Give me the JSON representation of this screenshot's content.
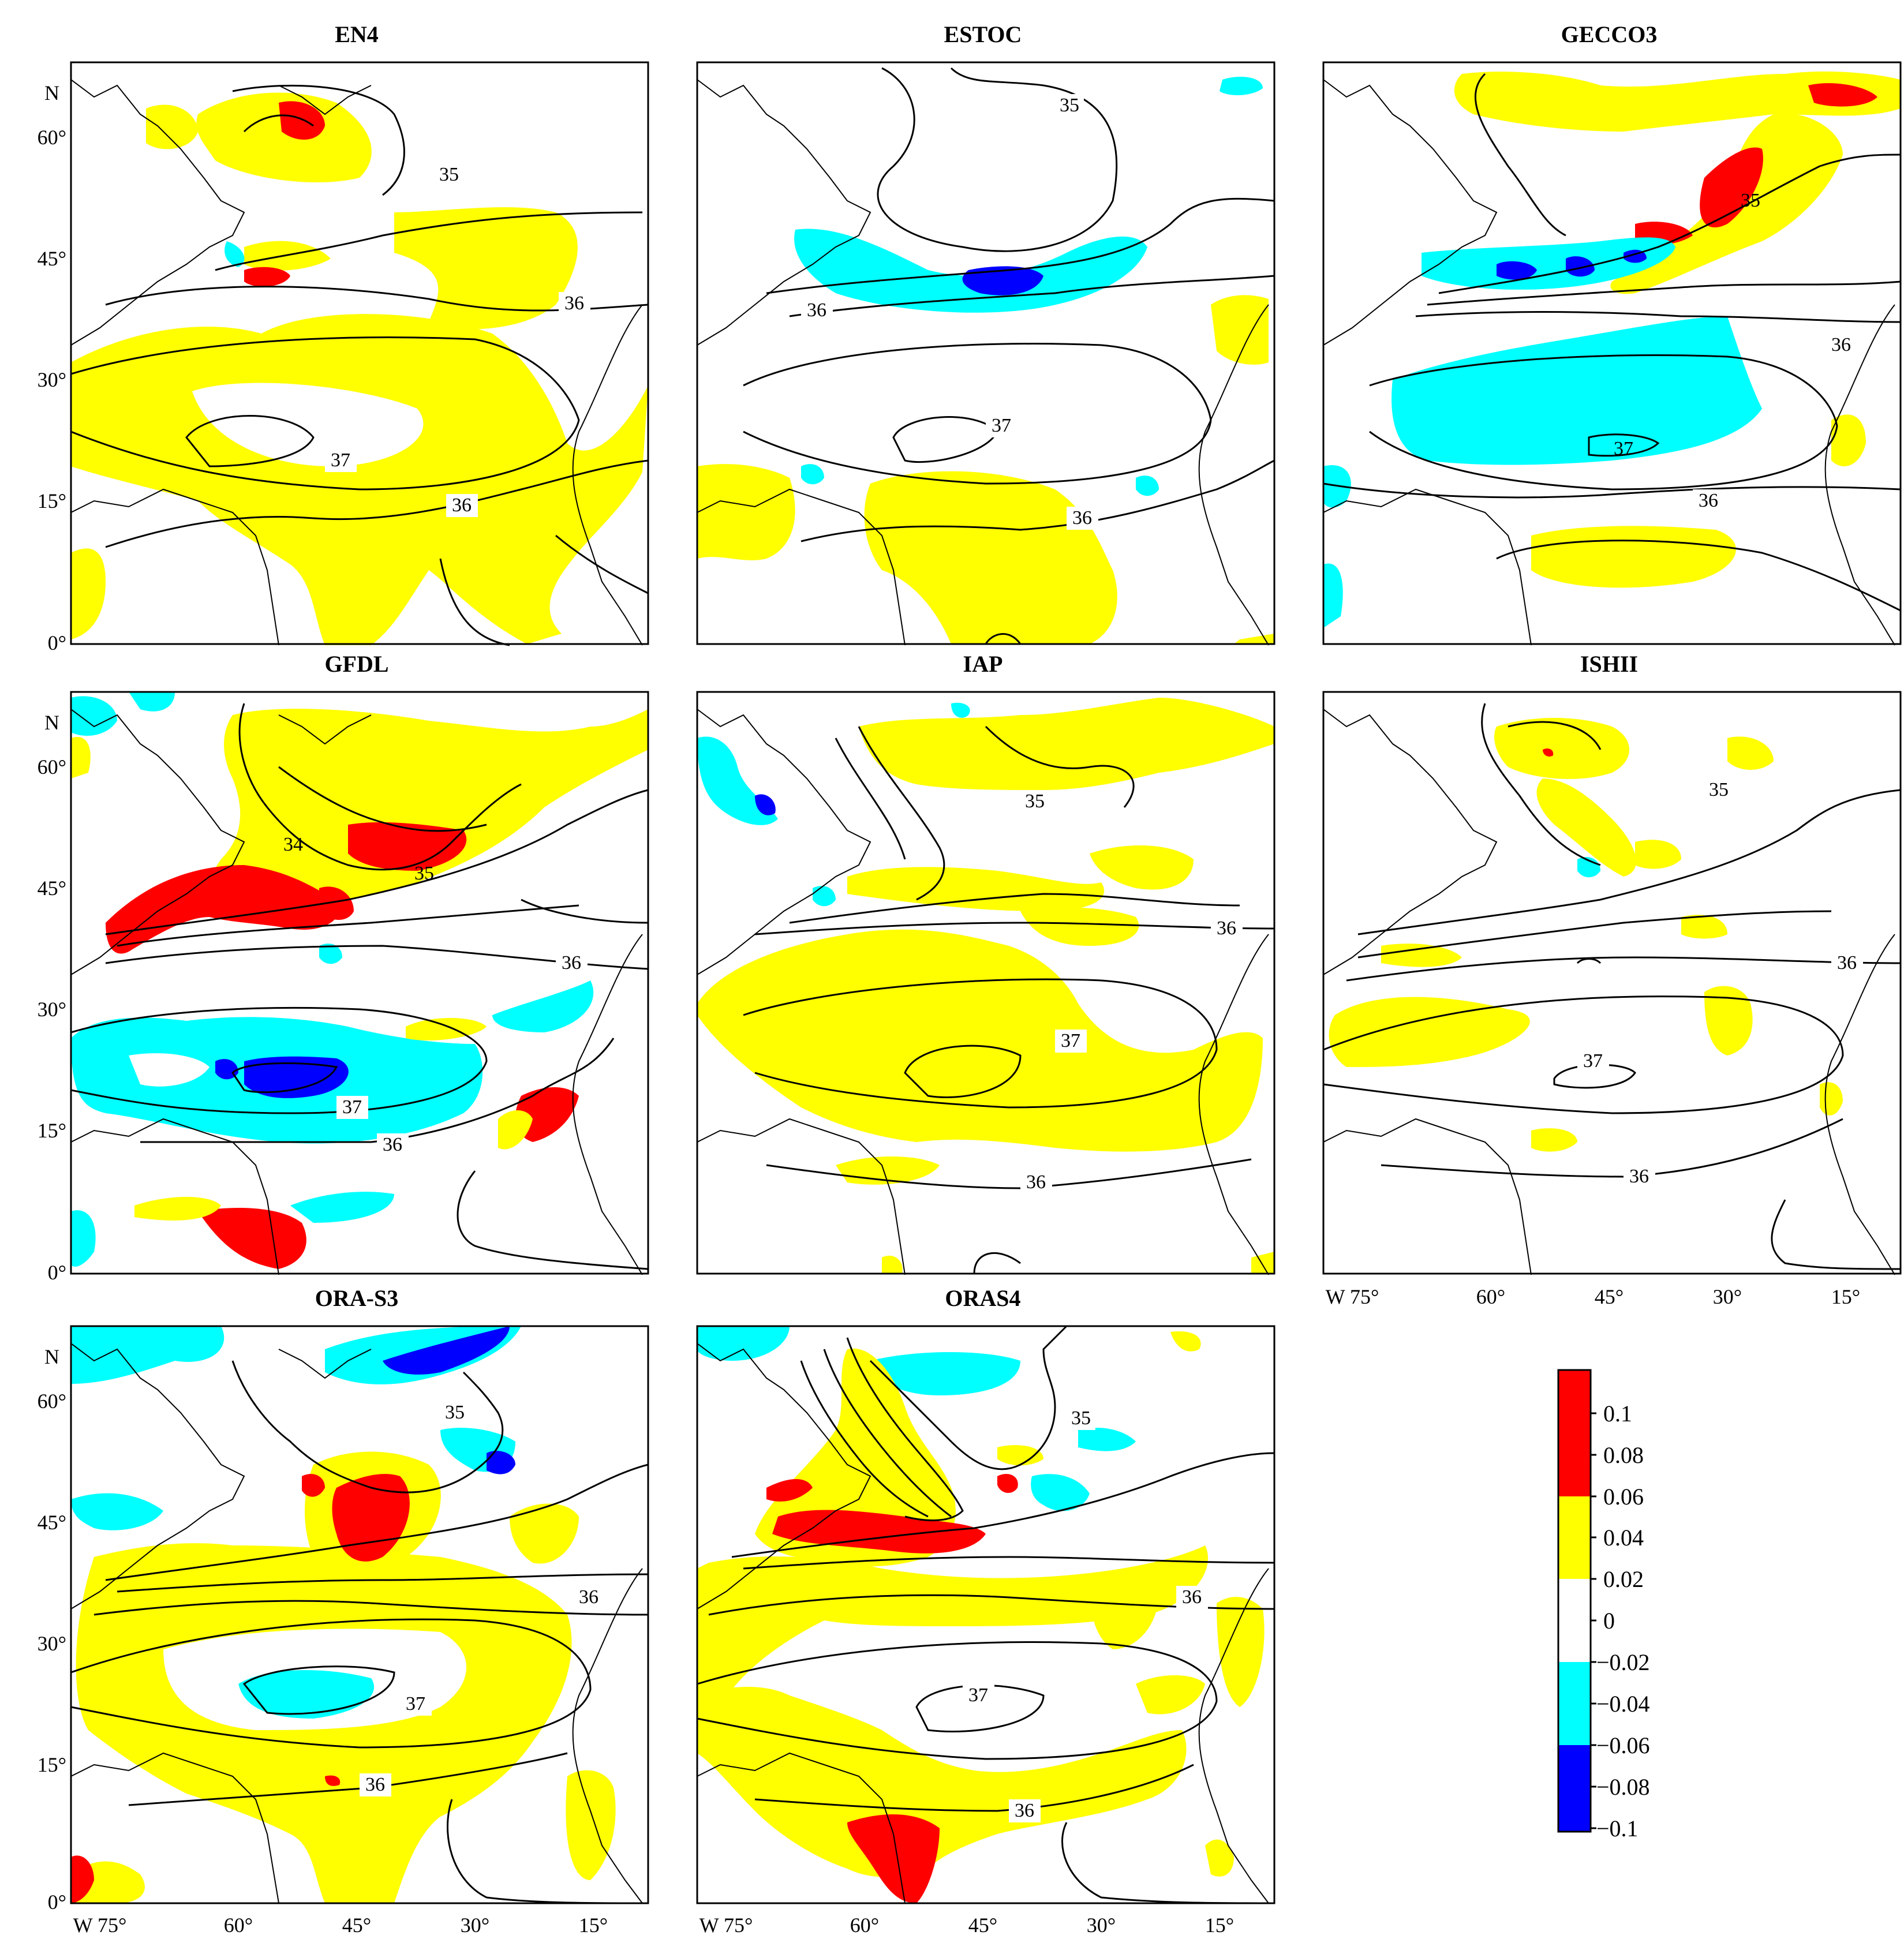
{
  "figure": {
    "colors": {
      "red": "#ff0000",
      "yellow": "#ffff00",
      "white": "#ffffff",
      "cyan": "#00ffff",
      "blue": "#0000ff",
      "contour": "#000000",
      "coast": "#000000"
    },
    "lat_labels": [
      "N",
      "60°",
      "45°",
      "30°",
      "15°",
      "0°"
    ],
    "lon_labels": [
      "W 75°",
      "60°",
      "45°",
      "30°",
      "15°"
    ],
    "panels": [
      {
        "title": "EN4",
        "contour_labels": [
          "35",
          "36",
          "37",
          "36"
        ]
      },
      {
        "title": "ESTOC",
        "contour_labels": [
          "35",
          "36",
          "37",
          "36"
        ]
      },
      {
        "title": "GECCO3",
        "contour_labels": [
          "35",
          "36",
          "37",
          "36"
        ]
      },
      {
        "title": "GFDL",
        "contour_labels": [
          "34",
          "35",
          "36",
          "37",
          "36"
        ]
      },
      {
        "title": "IAP",
        "contour_labels": [
          "35",
          "36",
          "37",
          "36"
        ]
      },
      {
        "title": "ISHII",
        "contour_labels": [
          "35",
          "36",
          "37",
          "36"
        ]
      },
      {
        "title": "ORA-S3",
        "contour_labels": [
          "35",
          "36",
          "37",
          "36"
        ]
      },
      {
        "title": "ORAS4",
        "contour_labels": [
          "35",
          "36",
          "37",
          "36"
        ]
      }
    ],
    "colorbar": {
      "tick_labels": [
        "0.1",
        "0.08",
        "0.06",
        "0.04",
        "0.02",
        "0",
        "−0.02",
        "−0.04",
        "−0.06",
        "−0.08",
        "−0.1"
      ]
    }
  }
}
